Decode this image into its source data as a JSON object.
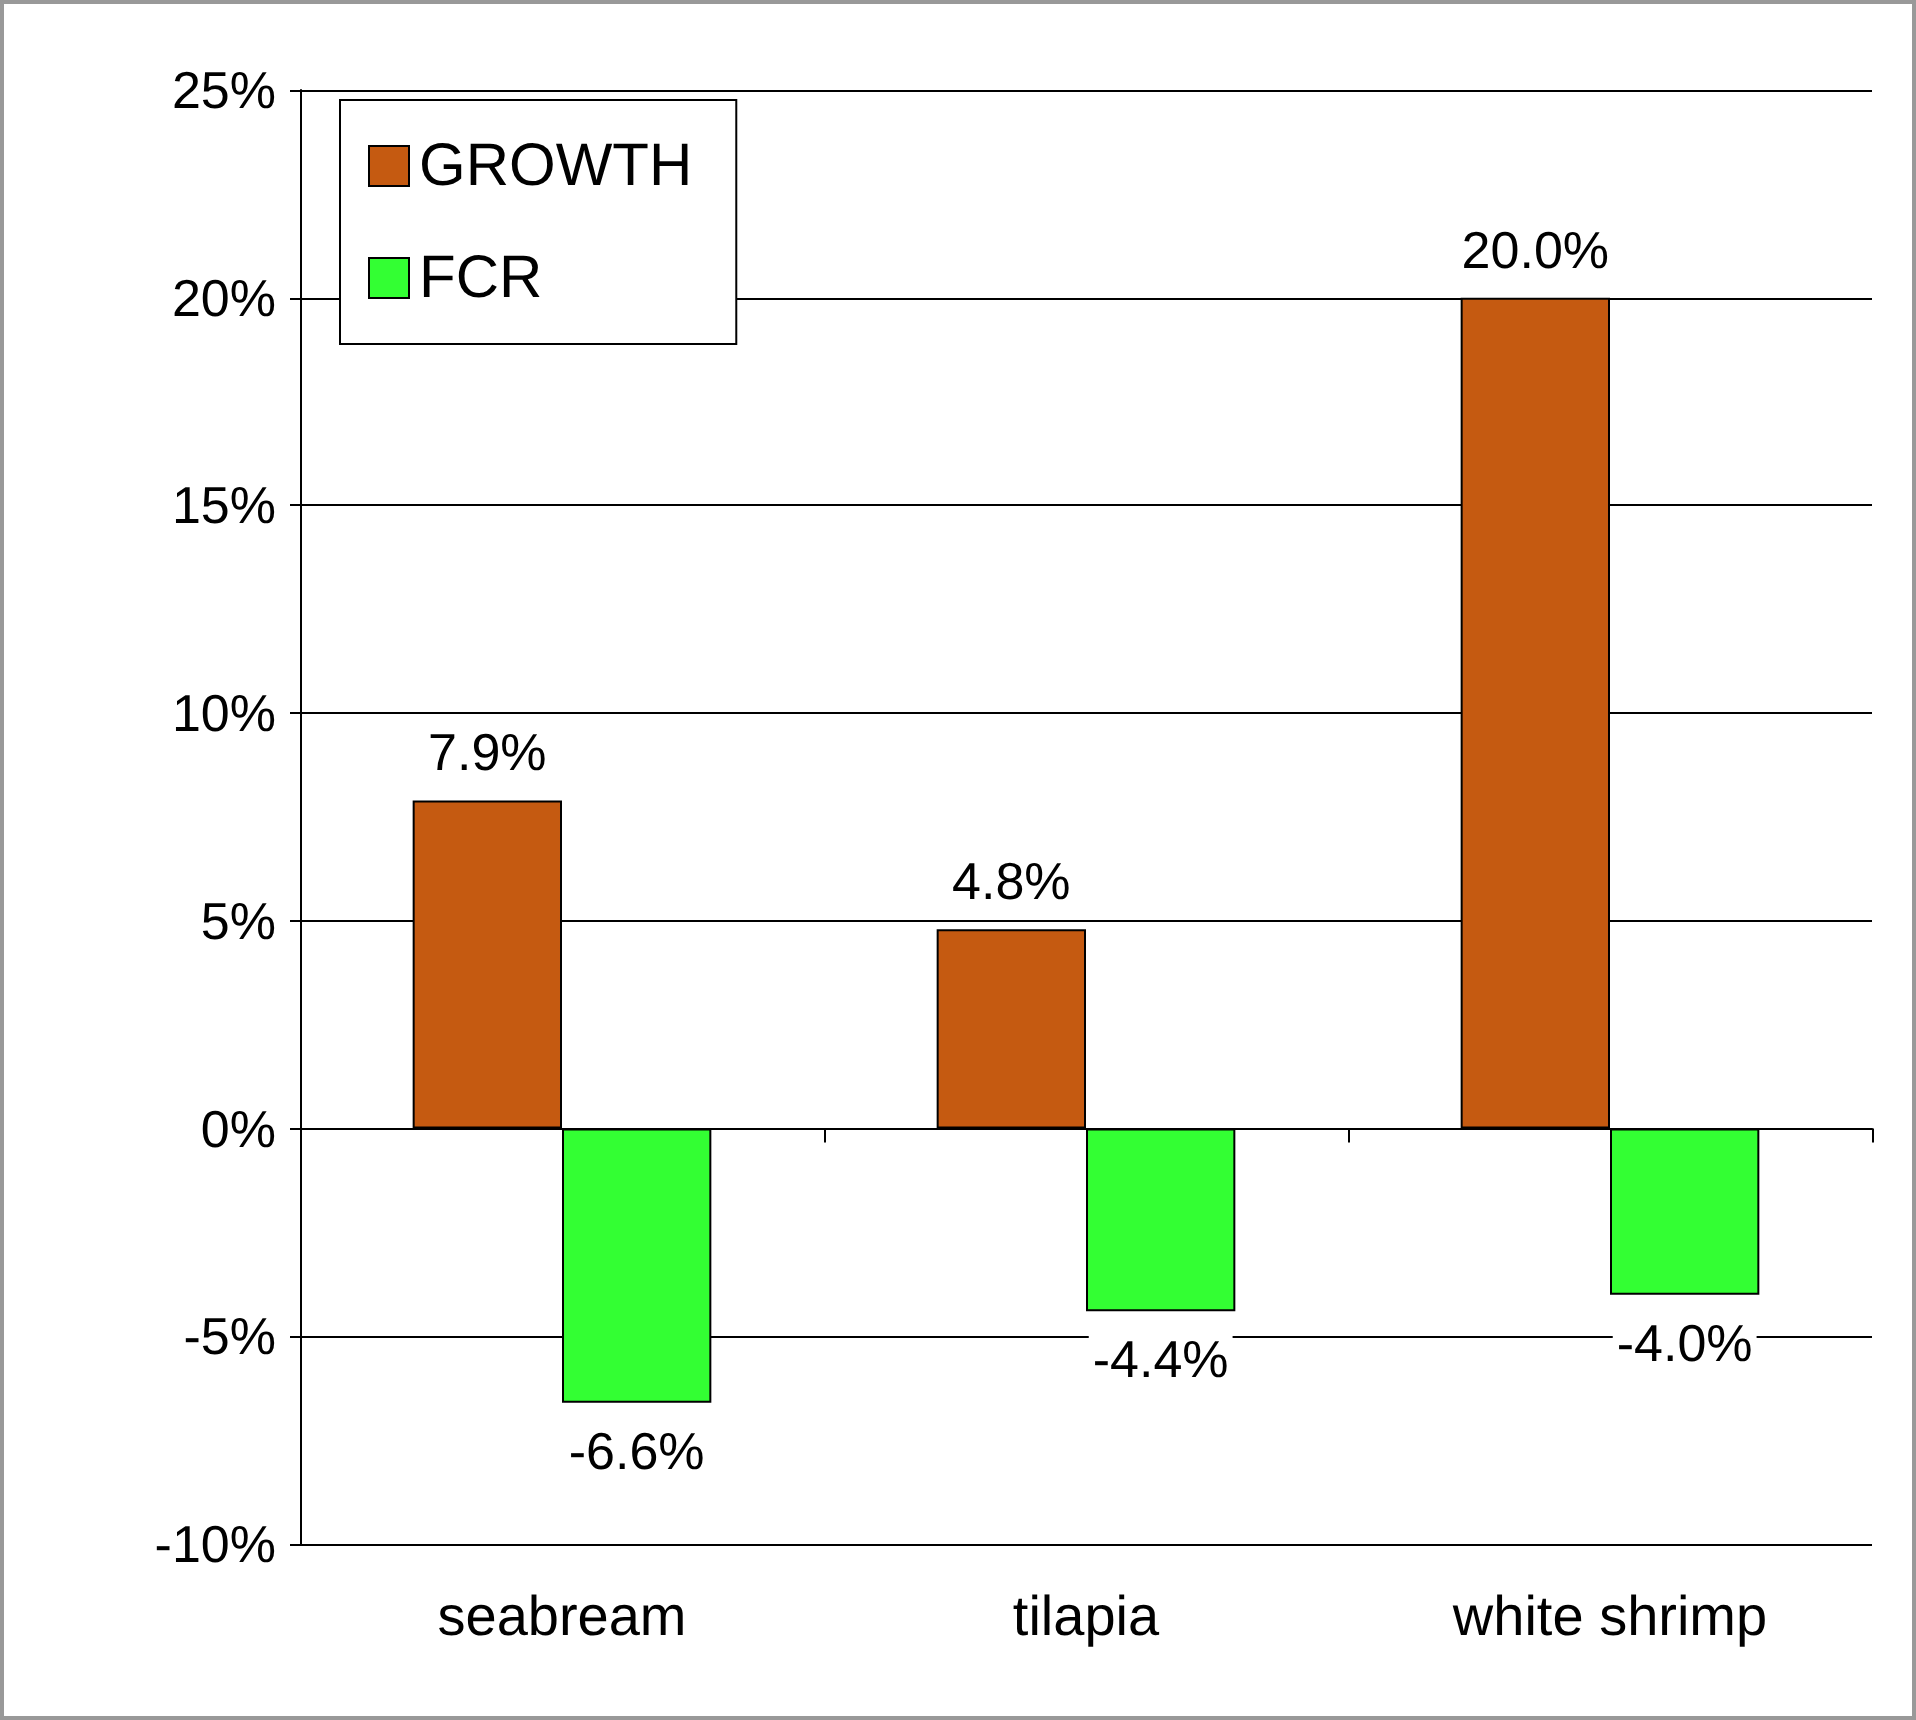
{
  "chart_data": {
    "type": "bar",
    "categories": [
      "seabream",
      "tilapia",
      "white shrimp"
    ],
    "series": [
      {
        "name": "GROWTH",
        "color": "#c55a11",
        "values": [
          7.9,
          4.8,
          20.0
        ],
        "value_labels": [
          "7.9%",
          "4.8%",
          "20.0%"
        ]
      },
      {
        "name": "FCR",
        "color": "#33ff33",
        "values": [
          -6.6,
          -4.4,
          -4.0
        ],
        "value_labels": [
          "-6.6%",
          "-4.4%",
          "-4.0%"
        ]
      }
    ],
    "ylim": [
      -10,
      25
    ],
    "yticks": [
      {
        "value": -10,
        "label": "-10%"
      },
      {
        "value": -5,
        "label": "-5%"
      },
      {
        "value": 0,
        "label": "0%"
      },
      {
        "value": 5,
        "label": "5%"
      },
      {
        "value": 10,
        "label": "10%"
      },
      {
        "value": 15,
        "label": "15%"
      },
      {
        "value": 20,
        "label": "20%"
      },
      {
        "value": 25,
        "label": "25%"
      }
    ],
    "grid": "y",
    "legend": "top left"
  }
}
